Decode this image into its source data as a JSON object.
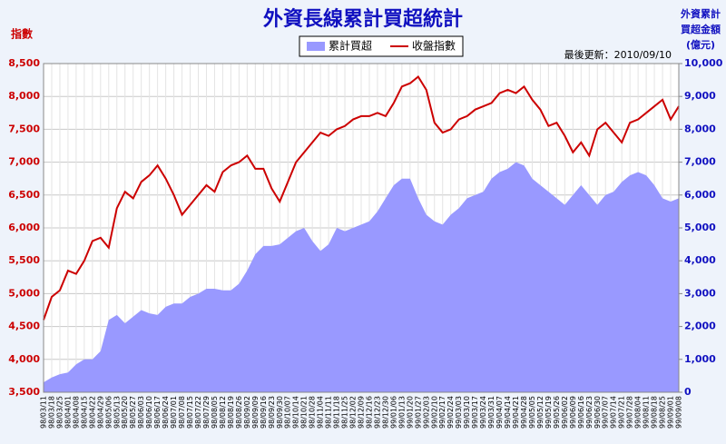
{
  "chart_data": {
    "type": "area-line",
    "title": "外資長線累計買超統計",
    "ylabel": "指數",
    "y2label": [
      "外資累計",
      "買超金額",
      "(億元)"
    ],
    "note": "最後更新：2010/09/10",
    "categories": [
      "98/03/11",
      "98/03/18",
      "98/03/25",
      "98/04/01",
      "98/04/08",
      "98/04/15",
      "98/04/22",
      "98/04/29",
      "98/05/06",
      "98/05/13",
      "98/05/20",
      "98/05/27",
      "98/06/03",
      "98/06/10",
      "98/06/17",
      "98/06/24",
      "98/07/01",
      "98/07/08",
      "98/07/15",
      "98/07/22",
      "98/07/29",
      "98/08/05",
      "98/08/12",
      "98/08/19",
      "98/08/26",
      "98/09/02",
      "98/09/09",
      "98/09/16",
      "98/09/23",
      "98/09/30",
      "98/10/07",
      "98/10/14",
      "98/10/21",
      "98/10/28",
      "98/11/04",
      "98/11/11",
      "98/11/18",
      "98/11/25",
      "98/12/02",
      "98/12/09",
      "98/12/16",
      "98/12/23",
      "98/12/30",
      "99/01/06",
      "99/01/13",
      "99/01/20",
      "99/01/27",
      "99/02/03",
      "99/02/10",
      "99/02/17",
      "99/02/24",
      "99/03/03",
      "99/03/10",
      "99/03/17",
      "99/03/24",
      "99/03/31",
      "99/04/07",
      "99/04/14",
      "99/04/21",
      "99/04/28",
      "99/05/05",
      "99/05/12",
      "99/05/19",
      "99/05/26",
      "99/06/02",
      "99/06/09",
      "99/06/16",
      "99/06/23",
      "99/06/30",
      "99/07/07",
      "99/07/14",
      "99/07/21",
      "99/07/28",
      "99/08/04",
      "99/08/11",
      "99/08/18",
      "99/08/25",
      "99/09/01",
      "99/09/08"
    ],
    "series": [
      {
        "name": "累計買超",
        "color": "#9999ff",
        "axis": "y2",
        "values": [
          300,
          450,
          550,
          600,
          850,
          1000,
          1000,
          1250,
          2200,
          2350,
          2100,
          2300,
          2500,
          2400,
          2350,
          2600,
          2700,
          2700,
          2900,
          3000,
          3150,
          3150,
          3100,
          3100,
          3300,
          3700,
          4200,
          4450,
          4450,
          4500,
          4700,
          4900,
          5000,
          4600,
          4300,
          4500,
          5000,
          4900,
          5000,
          5100,
          5200,
          5500,
          5900,
          6300,
          6500,
          6500,
          5900,
          5400,
          5200,
          5100,
          5400,
          5600,
          5900,
          6000,
          6100,
          6500,
          6700,
          6800,
          7000,
          6900,
          6500,
          6300,
          6100,
          5900,
          5700,
          6000,
          6300,
          6000,
          5700,
          6000,
          6100,
          6400,
          6600,
          6700,
          6600,
          6300,
          5900,
          5800,
          5900
        ]
      },
      {
        "name": "收盤指數",
        "color": "#cc0000",
        "values": [
          4600,
          4950,
          5050,
          5350,
          5300,
          5500,
          5800,
          5850,
          5700,
          6300,
          6550,
          6450,
          6700,
          6800,
          6950,
          6750,
          6500,
          6200,
          6350,
          6500,
          6650,
          6550,
          6850,
          6950,
          7000,
          7100,
          6900,
          6900,
          6600,
          6400,
          6700,
          7000,
          7150,
          7300,
          7450,
          7400,
          7500,
          7550,
          7650,
          7700,
          7700,
          7750,
          7700,
          7900,
          8150,
          8200,
          8300,
          8100,
          7600,
          7450,
          7500,
          7650,
          7700,
          7800,
          7850,
          7900,
          8050,
          8100,
          8050,
          8150,
          7950,
          7800,
          7550,
          7600,
          7400,
          7150,
          7300,
          7100,
          7500,
          7600,
          7450,
          7300,
          7600,
          7650,
          7750,
          7850,
          7950,
          7650,
          7850
        ]
      }
    ],
    "ylim": [
      3500,
      8500
    ],
    "yticks": [
      {
        "value": 3500,
        "label": "3,500"
      },
      {
        "value": 4000,
        "label": "4,000"
      },
      {
        "value": 4500,
        "label": "4,500"
      },
      {
        "value": 5000,
        "label": "5,000"
      },
      {
        "value": 5500,
        "label": "5,500"
      },
      {
        "value": 6000,
        "label": "6,000"
      },
      {
        "value": 6500,
        "label": "6,500"
      },
      {
        "value": 7000,
        "label": "7,000"
      },
      {
        "value": 7500,
        "label": "7,500"
      },
      {
        "value": 8000,
        "label": "8,000"
      },
      {
        "value": 8500,
        "label": "8,500"
      }
    ],
    "y2lim": [
      0,
      10000
    ],
    "y2ticks": [
      0,
      {
        "value": 1000,
        "label": "1,000"
      },
      {
        "value": 2000,
        "label": "2,000"
      },
      {
        "value": 3000,
        "label": "3,000"
      },
      {
        "value": 4000,
        "label": "4,000"
      },
      {
        "value": 5000,
        "label": "5,000"
      },
      {
        "value": 6000,
        "label": "6,000"
      },
      {
        "value": 7000,
        "label": "7,000"
      },
      {
        "value": 8000,
        "label": "8,000"
      },
      {
        "value": 9000,
        "label": "9,000"
      },
      {
        "value": 10000,
        "label": "10,000"
      }
    ],
    "grid": true
  }
}
